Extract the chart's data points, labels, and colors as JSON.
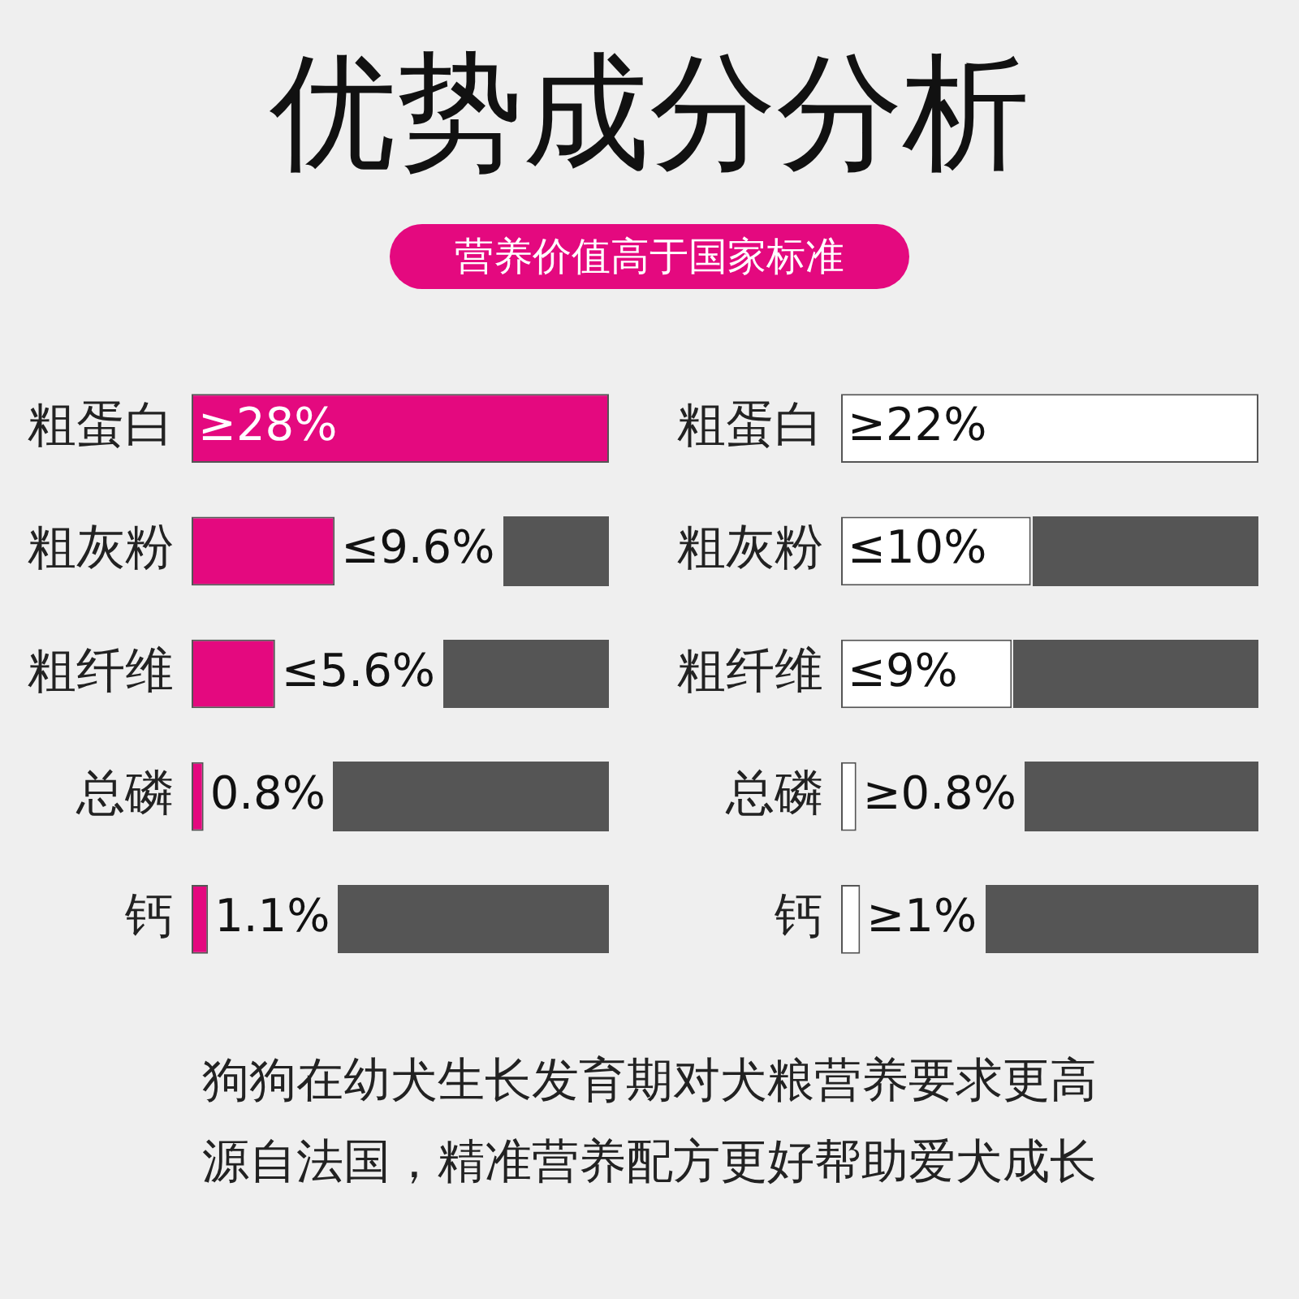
{
  "chart_data": [
    {
      "type": "bar",
      "orientation": "horizontal",
      "title": "优势成分分析",
      "subtitle": "营养价值高于国家标准",
      "annotations": [
        "狗狗在幼犬生长发育期对犬粮营养要求更高",
        "源自法国，精准营养配方更好帮助爱犬成长"
      ],
      "categories": [
        "粗蛋白",
        "粗灰粉",
        "粗纤维",
        "总磷",
        "钙"
      ],
      "series": [
        {
          "color": "#e4097f",
          "values": [
            28,
            9.6,
            5.6,
            0.8,
            1.1
          ],
          "value_labels": [
            "≥28%",
            "≤9.6%",
            "≤5.6%",
            "0.8%",
            "1.1%"
          ]
        }
      ]
    },
    {
      "type": "bar",
      "orientation": "horizontal",
      "categories": [
        "粗蛋白",
        "粗灰粉",
        "粗纤维",
        "总磷",
        "钙"
      ],
      "series": [
        {
          "color": "#ffffff",
          "values": [
            22,
            10,
            9,
            0.8,
            1
          ],
          "value_labels": [
            "≥22%",
            "≤10%",
            "≤9%",
            "≥0.8%",
            "≥1%"
          ]
        }
      ]
    }
  ]
}
